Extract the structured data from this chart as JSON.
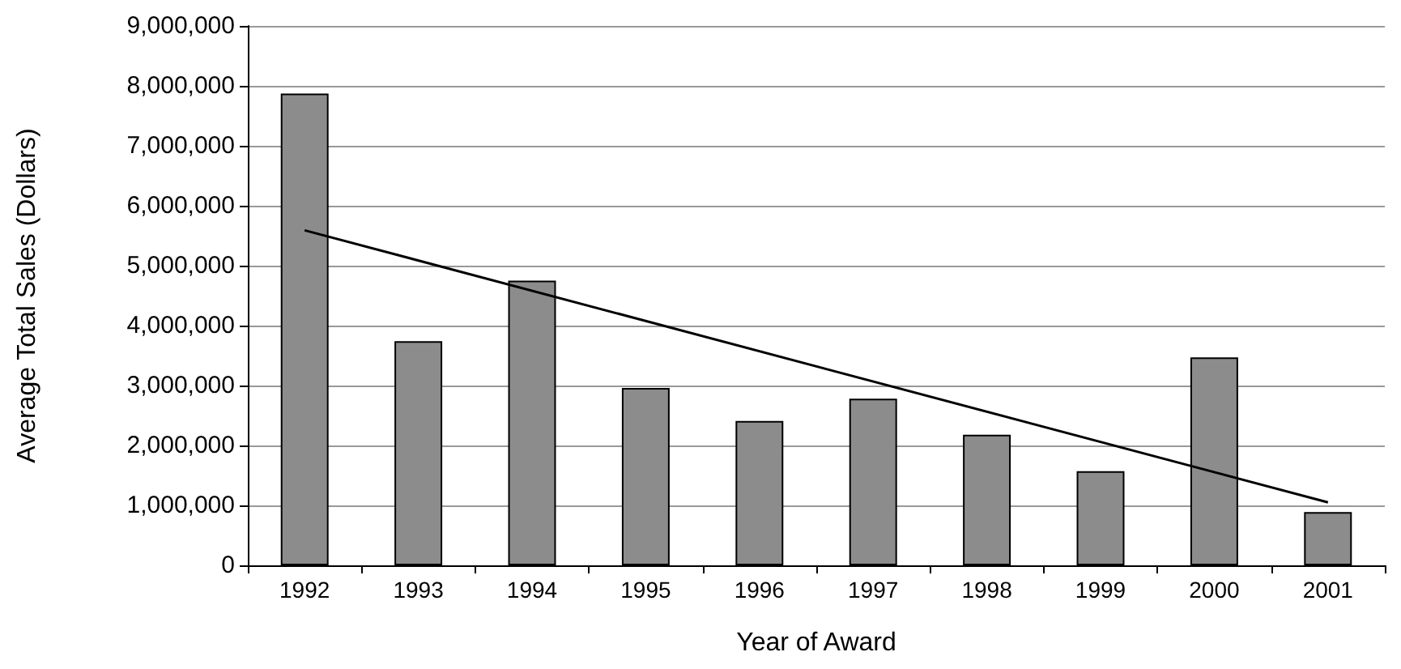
{
  "chart_data": {
    "type": "bar",
    "xlabel": "Year of Award",
    "ylabel": "Average Total Sales (Dollars)",
    "categories": [
      "1992",
      "1993",
      "1994",
      "1995",
      "1996",
      "1997",
      "1998",
      "1999",
      "2000",
      "2001"
    ],
    "series": [
      {
        "color": "#8c8c8c",
        "values": [
          7870000,
          3740000,
          4750000,
          2960000,
          2410000,
          2780000,
          2180000,
          1570000,
          3470000,
          890000
        ]
      },
      {
        "type": "line",
        "color": "#000000",
        "values": [
          5590000,
          null,
          null,
          null,
          null,
          null,
          null,
          null,
          null,
          1050000
        ]
      }
    ],
    "ylim": [
      0,
      9000000
    ],
    "yticks": [
      {
        "value": 0,
        "label": "0"
      },
      {
        "value": 1000000,
        "label": "1,000,000"
      },
      {
        "value": 2000000,
        "label": "2,000,000"
      },
      {
        "value": 3000000,
        "label": "3,000,000"
      },
      {
        "value": 4000000,
        "label": "4,000,000"
      },
      {
        "value": 5000000,
        "label": "5,000,000"
      },
      {
        "value": 6000000,
        "label": "6,000,000"
      },
      {
        "value": 7000000,
        "label": "7,000,000"
      },
      {
        "value": 8000000,
        "label": "8,000,000"
      },
      {
        "value": 9000000,
        "label": "9,000,000"
      }
    ],
    "grid": "y",
    "marker": "none"
  }
}
